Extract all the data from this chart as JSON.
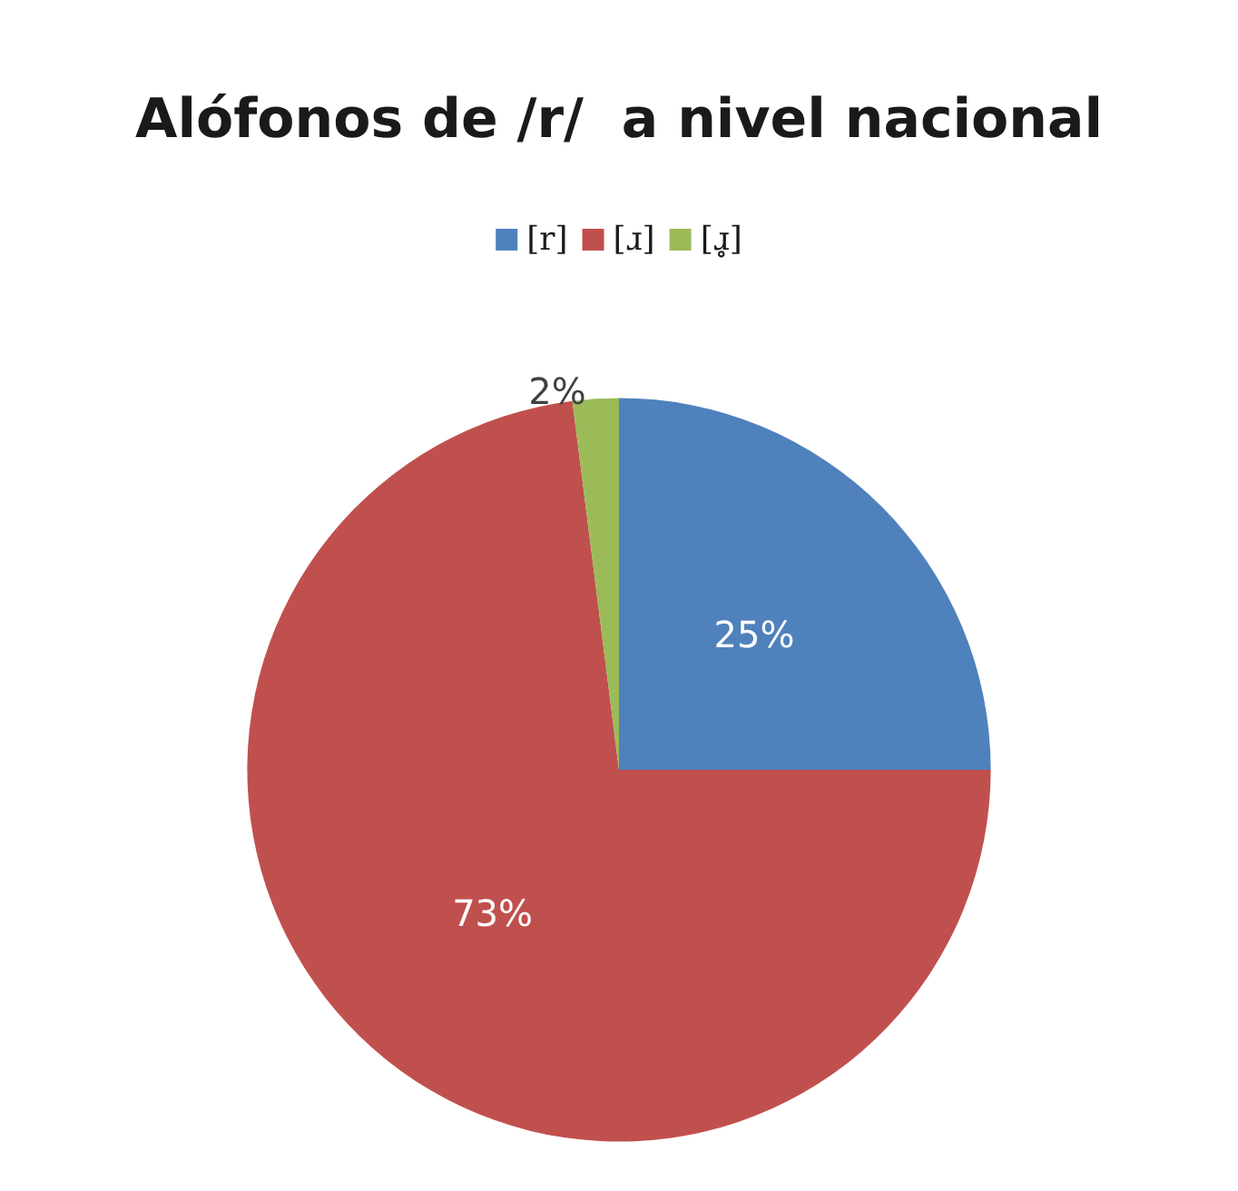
{
  "chart_data": {
    "type": "pie",
    "title": "Alófonos de /r/  a nivel nacional",
    "categories": [
      "[r]",
      "[ɹ]",
      "[ɹ̥]"
    ],
    "values": [
      25,
      73,
      2
    ],
    "colors": [
      "#4f81bd",
      "#c0504d",
      "#9bbb59"
    ],
    "legend": "top",
    "value_labels": [
      "25%",
      "73%",
      "2%"
    ]
  }
}
